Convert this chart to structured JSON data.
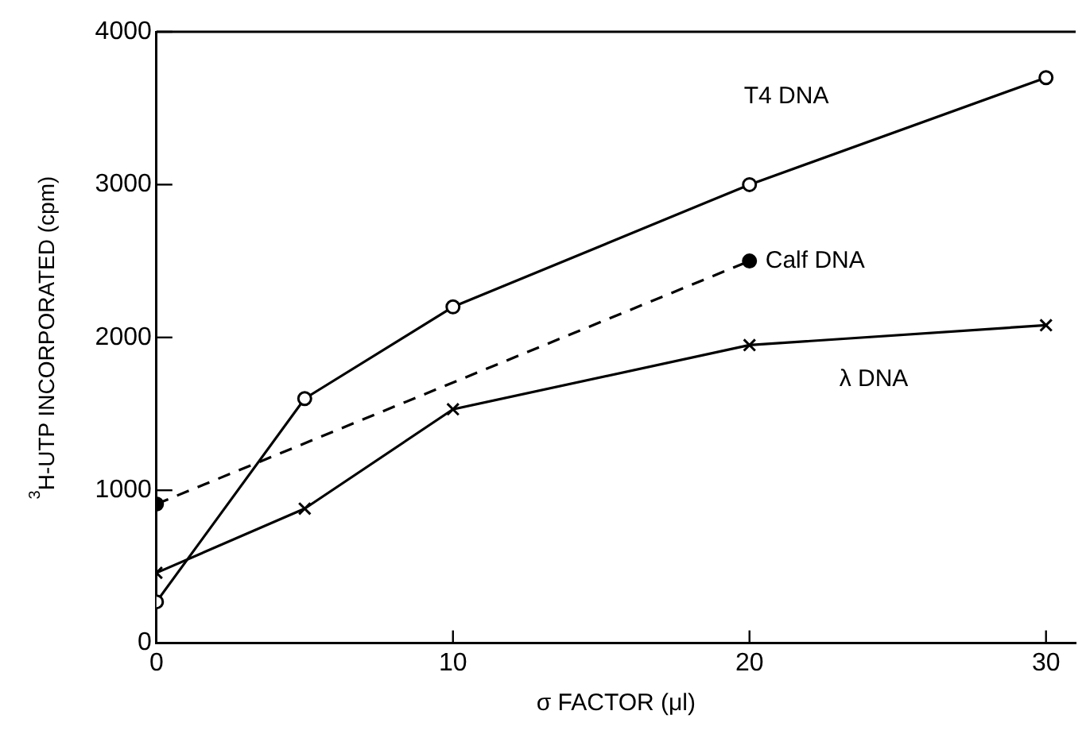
{
  "chart_data": {
    "type": "line",
    "xlabel": "σ FACTOR (μl)",
    "ylabel": "$^{3}$H-UTP INCORPORATED (cpm)",
    "xlim": [
      0,
      31
    ],
    "xticks": [
      0,
      10,
      20,
      30
    ],
    "ylim": [
      0,
      4000
    ],
    "yticks": [
      0,
      1000,
      2000,
      3000,
      4000
    ],
    "grid": false,
    "legend": false,
    "series": [
      {
        "name": "T4 DNA",
        "color": "#000000",
        "marker": "circle",
        "line_style": "solid",
        "x": [
          0,
          5,
          10,
          20,
          30
        ],
        "values": [
          270,
          1600,
          2200,
          3000,
          3700
        ]
      },
      {
        "name": "Calf DNA",
        "color": "#000000",
        "marker": "circle",
        "line_style": "dashed",
        "x": [
          0,
          20
        ],
        "values": [
          910,
          2500
        ]
      },
      {
        "name": "λ DNA",
        "color": "#000000",
        "marker": "cross",
        "line_style": "solid",
        "x": [
          0,
          5,
          10,
          20,
          30
        ],
        "values": [
          460,
          880,
          1530,
          1950,
          2080
        ]
      }
    ]
  }
}
